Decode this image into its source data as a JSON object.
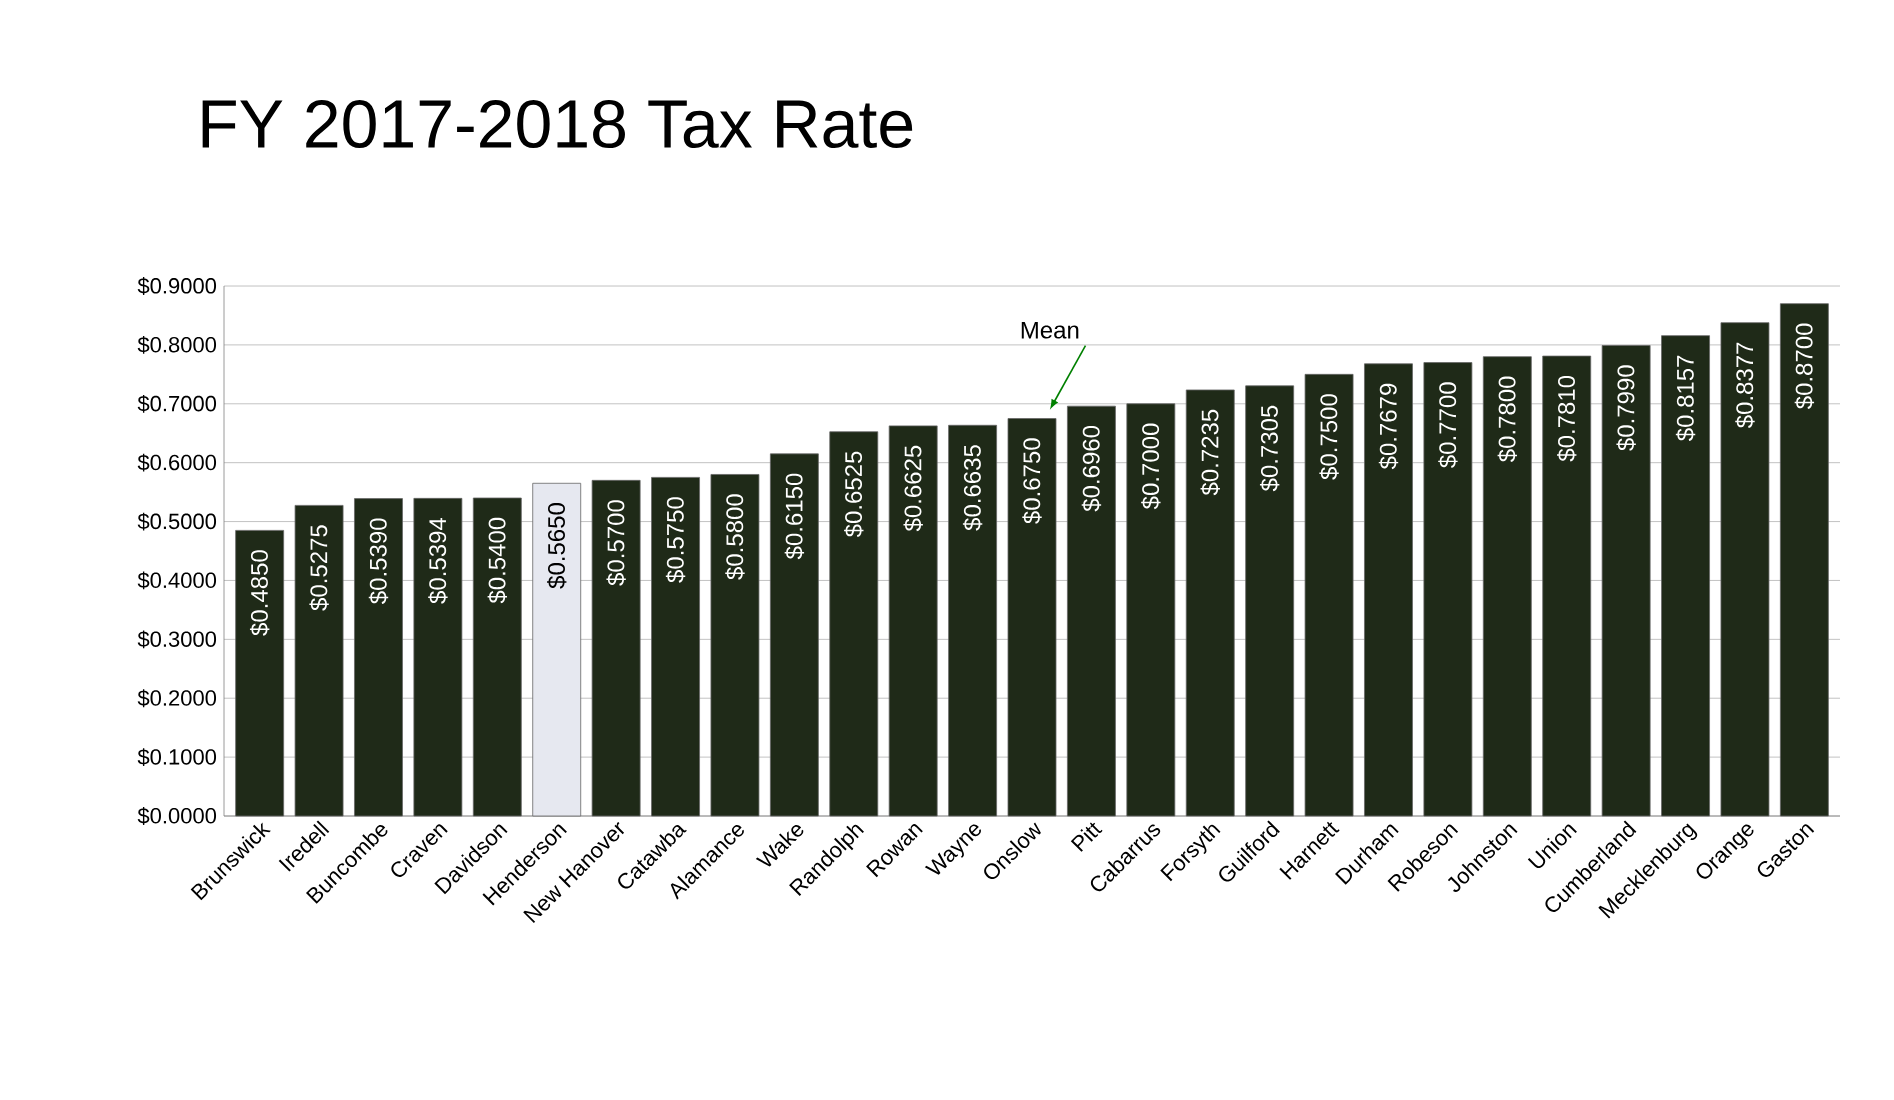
{
  "chart_data": {
    "type": "bar",
    "title": "FY 2017-2018 Tax Rate",
    "categories": [
      "Brunswick",
      "Iredell",
      "Buncombe",
      "Craven",
      "Davidson",
      "Henderson",
      "New Hanover",
      "Catawba",
      "Alamance",
      "Wake",
      "Randolph",
      "Rowan",
      "Wayne",
      "Onslow",
      "Pitt",
      "Cabarrus",
      "Forsyth",
      "Guilford",
      "Harnett",
      "Durham",
      "Robeson",
      "Johnston",
      "Union",
      "Cumberland",
      "Mecklenburg",
      "Orange",
      "Gaston"
    ],
    "values": [
      0.485,
      0.5275,
      0.539,
      0.5394,
      0.54,
      0.565,
      0.57,
      0.575,
      0.58,
      0.615,
      0.6525,
      0.6625,
      0.6635,
      0.675,
      0.696,
      0.7,
      0.7235,
      0.7305,
      0.75,
      0.7679,
      0.77,
      0.78,
      0.781,
      0.799,
      0.8157,
      0.8377,
      0.87
    ],
    "value_labels": [
      "$0.4850",
      "$0.5275",
      "$0.5390",
      "$0.5394",
      "$0.5400",
      "$0.5650",
      "$0.5700",
      "$0.5750",
      "$0.5800",
      "$0.6150",
      "$0.6525",
      "$0.6625",
      "$0.6635",
      "$0.6750",
      "$0.6960",
      "$0.7000",
      "$0.7235",
      "$0.7305",
      "$0.7500",
      "$0.7679",
      "$0.7700",
      "$0.7800",
      "$0.7810",
      "$0.7990",
      "$0.8157",
      "$0.8377",
      "$0.8700"
    ],
    "colors": [
      "#1f2a18",
      "#1f2a18",
      "#1f2a18",
      "#1f2a18",
      "#1f2a18",
      "#e6e8f0",
      "#1f2a18",
      "#1f2a18",
      "#1f2a18",
      "#1f2a18",
      "#1f2a18",
      "#1f2a18",
      "#1f2a18",
      "#1f2a18",
      "#1f2a18",
      "#1f2a18",
      "#1f2a18",
      "#1f2a18",
      "#1f2a18",
      "#1f2a18",
      "#1f2a18",
      "#1f2a18",
      "#1f2a18",
      "#1f2a18",
      "#1f2a18",
      "#1f2a18",
      "#1f2a18"
    ],
    "ylim": [
      0,
      0.9
    ],
    "yticks": [
      {
        "value": 0,
        "label": "$0.0000"
      },
      {
        "value": 0.1,
        "label": "$0.1000"
      },
      {
        "value": 0.2,
        "label": "$0.2000"
      },
      {
        "value": 0.3,
        "label": "$0.3000"
      },
      {
        "value": 0.4,
        "label": "$0.4000"
      },
      {
        "value": 0.5,
        "label": "$0.5000"
      },
      {
        "value": 0.6,
        "label": "$0.6000"
      },
      {
        "value": 0.7,
        "label": "$0.7000"
      },
      {
        "value": 0.8,
        "label": "$0.8000"
      },
      {
        "value": 0.9,
        "label": "$0.9000"
      }
    ],
    "grid": "y",
    "annotations": [
      {
        "text": "Mean",
        "x": "Onslow",
        "y": 0.69
      }
    ]
  }
}
